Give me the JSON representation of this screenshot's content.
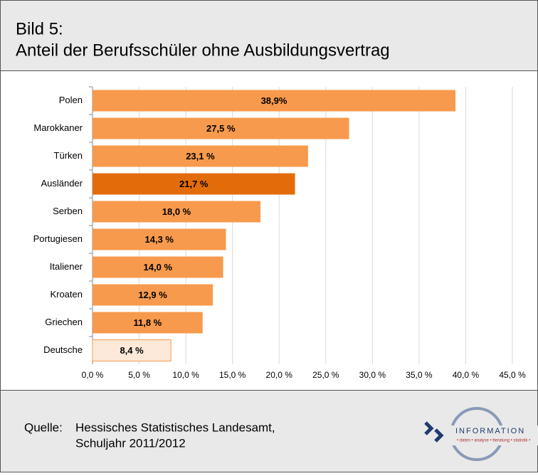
{
  "chart_data": {
    "type": "hbar",
    "title": [
      "Bild 5:",
      "Anteil der Berufsschüler ohne Ausbildungsvertrag"
    ],
    "categories": [
      "Polen",
      "Marokkaner",
      "Türken",
      "Ausländer",
      "Serben",
      "Portugiesen",
      "Italiener",
      "Kroaten",
      "Griechen",
      "Deutsche"
    ],
    "values": [
      38.9,
      27.5,
      23.1,
      21.7,
      18.0,
      14.3,
      14.0,
      12.9,
      11.8,
      8.4
    ],
    "value_labels": [
      "38,9%",
      "27,5 %",
      "23,1 %",
      "21,7 %",
      "18,0 %",
      "14,3 %",
      "14,0 %",
      "12,9 %",
      "11,8 %",
      "8,4 %"
    ],
    "colors": [
      "#f79a4d",
      "#f79a4d",
      "#f79a4d",
      "#e36c0a",
      "#f79a4d",
      "#f79a4d",
      "#f79a4d",
      "#f79a4d",
      "#f79a4d",
      "#fde9d9"
    ],
    "xlim": [
      0,
      45
    ],
    "xticks": [
      {
        "value": 0,
        "label": "0,0 %"
      },
      {
        "value": 5,
        "label": "5,0 %"
      },
      {
        "value": 10,
        "label": "10,0 %"
      },
      {
        "value": 15,
        "label": "15,0 %"
      },
      {
        "value": 20,
        "label": "20,0 %"
      },
      {
        "value": 25,
        "label": "25,0 %"
      },
      {
        "value": 30,
        "label": "30,0 %"
      },
      {
        "value": 35,
        "label": "35,0 %"
      },
      {
        "value": 40,
        "label": "40,0 %"
      },
      {
        "value": 45,
        "label": "45,0 %"
      }
    ],
    "grid": true
  },
  "footer": {
    "source_label": "Quelle:",
    "source": [
      "Hessisches Statistisches Landesamt,",
      "Schuljahr 2011/2012"
    ],
    "logo": {
      "name": "INFORMATION",
      "tagline": "• daten • analyse • beratung • statistik •"
    }
  }
}
